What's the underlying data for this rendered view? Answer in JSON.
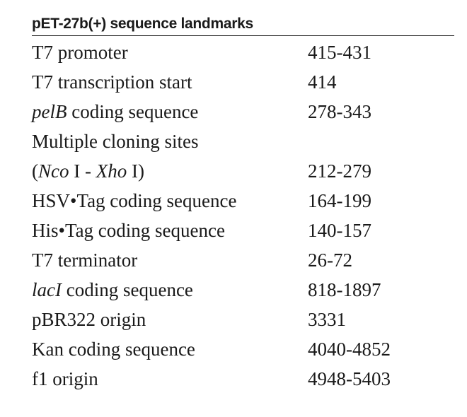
{
  "table": {
    "title": "pET-27b(+) sequence landmarks",
    "rows": [
      {
        "feature": [
          {
            "text": "T7 promoter"
          }
        ],
        "range": "415-431"
      },
      {
        "feature": [
          {
            "text": "T7 transcription start"
          }
        ],
        "range": "414"
      },
      {
        "feature": [
          {
            "text": "pelB",
            "italic": true
          },
          {
            "text": " coding sequence"
          }
        ],
        "range": "278-343"
      },
      {
        "feature": [
          {
            "text": "Multiple cloning sites"
          }
        ],
        "range": ""
      },
      {
        "feature": [
          {
            "text": "("
          },
          {
            "text": "Nco",
            "italic": true
          },
          {
            "text": " I - "
          },
          {
            "text": "Xho",
            "italic": true
          },
          {
            "text": " I)"
          }
        ],
        "range": "212-279"
      },
      {
        "feature": [
          {
            "text": "HSV•Tag coding sequence"
          }
        ],
        "range": "164-199"
      },
      {
        "feature": [
          {
            "text": "His•Tag coding sequence"
          }
        ],
        "range": "140-157"
      },
      {
        "feature": [
          {
            "text": "T7 terminator"
          }
        ],
        "range": "26-72"
      },
      {
        "feature": [
          {
            "text": "lacI",
            "italic": true
          },
          {
            "text": " coding sequence"
          }
        ],
        "range": "818-1897"
      },
      {
        "feature": [
          {
            "text": "pBR322 origin"
          }
        ],
        "range": "3331"
      },
      {
        "feature": [
          {
            "text": "Kan coding sequence"
          }
        ],
        "range": "4040-4852"
      },
      {
        "feature": [
          {
            "text": "f1 origin"
          }
        ],
        "range": "4948-5403"
      }
    ]
  }
}
